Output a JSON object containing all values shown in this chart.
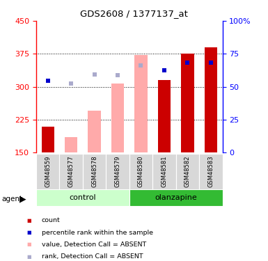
{
  "title": "GDS2608 / 1377137_at",
  "samples": [
    "GSM48559",
    "GSM48577",
    "GSM48578",
    "GSM48579",
    "GSM48580",
    "GSM48581",
    "GSM48582",
    "GSM48583"
  ],
  "red_bar_values": [
    210,
    null,
    null,
    null,
    null,
    315,
    375,
    390
  ],
  "pink_bar_values": [
    null,
    185,
    245,
    307,
    372,
    null,
    null,
    null
  ],
  "blue_square_values": [
    313,
    307,
    328,
    327,
    348,
    338,
    355,
    355
  ],
  "blue_square_absent": [
    false,
    true,
    true,
    true,
    true,
    false,
    false,
    false
  ],
  "ylim_left": [
    150,
    450
  ],
  "ylim_right": [
    0,
    100
  ],
  "yticks_left": [
    150,
    225,
    300,
    375,
    450
  ],
  "yticks_right": [
    0,
    25,
    50,
    75,
    100
  ],
  "bar_width": 0.55,
  "red_color": "#cc0000",
  "pink_color": "#ffaaaa",
  "blue_color": "#0000cc",
  "light_blue_color": "#aaaacc",
  "ctrl_color_light": "#ccffcc",
  "ctrl_color_dark": "#44bb44",
  "olan_color": "#33bb33",
  "legend_labels": [
    "count",
    "percentile rank within the sample",
    "value, Detection Call = ABSENT",
    "rank, Detection Call = ABSENT"
  ]
}
